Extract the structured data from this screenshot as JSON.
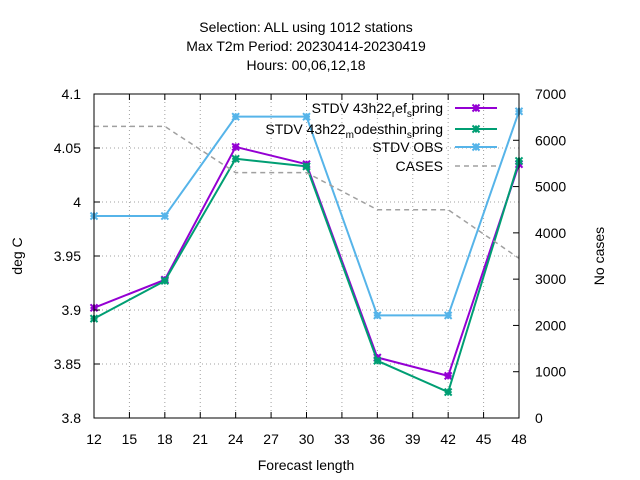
{
  "chart_data": {
    "type": "line",
    "title_lines": [
      "Selection: ALL using  1012 stations",
      "Max T2m   Period: 20230414-20230419",
      "Hours:  00,06,12,18"
    ],
    "xlabel": "Forecast length",
    "ylabel": "deg C",
    "y2label": "No cases",
    "xlim": [
      12,
      48
    ],
    "xticks": [
      12,
      15,
      18,
      21,
      24,
      27,
      30,
      33,
      36,
      39,
      42,
      45,
      48
    ],
    "ylim": [
      3.8,
      4.1
    ],
    "yticks": [
      "3.8",
      "3.85",
      "3.9",
      "3.95",
      "4",
      "4.05",
      "4.1"
    ],
    "y2lim": [
      0,
      7000
    ],
    "y2ticks": [
      "0",
      "1000",
      "2000",
      "3000",
      "4000",
      "5000",
      "6000",
      "7000"
    ],
    "grid": true,
    "legend_position": "top-right",
    "x": [
      12,
      18,
      24,
      30,
      36,
      42,
      48
    ],
    "series": [
      {
        "name": "STDV 43h22_ref_spring",
        "legend_main": "STDV 43h22",
        "legend_sub": "r",
        "legend_mid": "ef",
        "legend_sub2": "s",
        "legend_end": "pring",
        "color": "#9400d3",
        "axis": "y1",
        "values": [
          3.902,
          3.928,
          4.051,
          4.035,
          3.856,
          3.839,
          4.035
        ]
      },
      {
        "name": "STDV 43h22_modesthin_spring",
        "legend_main": "STDV 43h22",
        "legend_sub": "m",
        "legend_mid": "odesthin",
        "legend_sub2": "s",
        "legend_end": "pring",
        "color": "#009e73",
        "axis": "y1",
        "values": [
          3.892,
          3.927,
          4.04,
          4.033,
          3.853,
          3.824,
          4.038
        ]
      },
      {
        "name": "STDV OBS",
        "color": "#56b4e9",
        "axis": "y1",
        "values": [
          3.987,
          3.987,
          4.079,
          4.079,
          3.895,
          3.895,
          4.084
        ]
      },
      {
        "name": "CASES",
        "color": "#a0a0a0",
        "dashed": true,
        "axis": "y2",
        "values": [
          6300,
          6300,
          5300,
          5300,
          4500,
          4500,
          3450
        ]
      }
    ]
  }
}
